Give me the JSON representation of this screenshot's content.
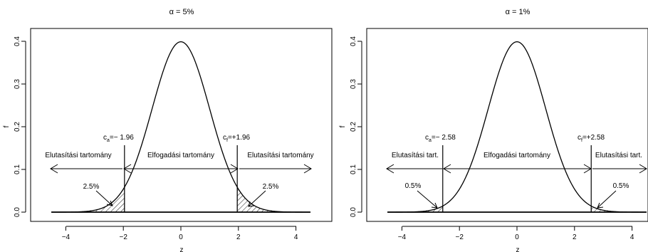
{
  "chart_data": [
    {
      "type": "area",
      "title": "α = 5%",
      "xlabel": "z",
      "ylabel": "f",
      "xlim": [
        -4.5,
        4.5
      ],
      "ylim": [
        0,
        0.4
      ],
      "x_ticks": [
        "−4",
        "−2",
        "0",
        "2",
        "4"
      ],
      "y_ticks": [
        "0.0",
        "0.1",
        "0.2",
        "0.3",
        "0.4"
      ],
      "curve": "standard normal density",
      "critical_values": [
        -1.96,
        1.96
      ],
      "critical_labels": [
        {
          "base": "c",
          "sub": "a",
          "text": "=− 1.96"
        },
        {
          "base": "c",
          "sub": "f",
          "text": "=+1.96"
        }
      ],
      "region_labels": {
        "left": "Elutasítási tartomány",
        "middle": "Elfogadási tartomány",
        "right": "Elutasítási tartomány"
      },
      "tail_labels": [
        "2.5%",
        "2.5%"
      ]
    },
    {
      "type": "area",
      "title": "α = 1%",
      "xlabel": "z",
      "ylabel": "f",
      "xlim": [
        -4.5,
        4.5
      ],
      "ylim": [
        0,
        0.4
      ],
      "x_ticks": [
        "−4",
        "−2",
        "0",
        "2",
        "4"
      ],
      "y_ticks": [
        "0.0",
        "0.1",
        "0.2",
        "0.3",
        "0.4"
      ],
      "curve": "standard normal density",
      "critical_values": [
        -2.58,
        2.58
      ],
      "critical_labels": [
        {
          "base": "c",
          "sub": "a",
          "text": "=− 2.58"
        },
        {
          "base": "c",
          "sub": "f",
          "text": "=+2.58"
        }
      ],
      "region_labels": {
        "left": "Elutasítási tart.",
        "middle": "Elfogadási tartomány",
        "right": "Elutasítási tart."
      },
      "tail_labels": [
        "0.5%",
        "0.5%"
      ]
    }
  ]
}
